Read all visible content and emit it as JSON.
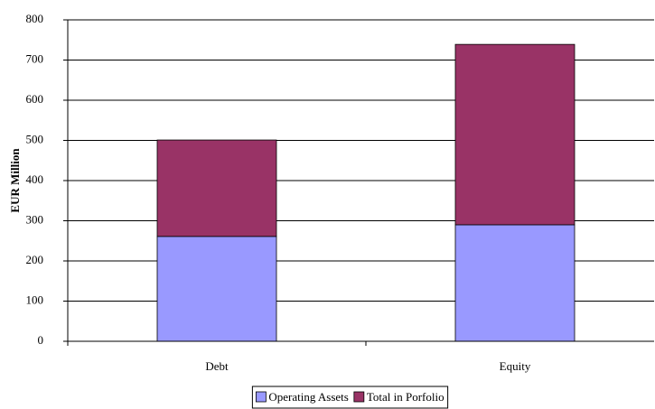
{
  "chart_data": {
    "type": "stacked-bar",
    "y_label": "EUR Million",
    "categories": [
      "Debt",
      "Equity"
    ],
    "series": [
      {
        "name": "Operating Assets",
        "color": "#9999ff",
        "values": [
          261,
          290
        ]
      },
      {
        "name": "Total in Porfolio",
        "color": "#993366",
        "values": [
          240,
          449
        ]
      }
    ],
    "ylim": [
      0,
      800
    ],
    "yticks": [
      0,
      100,
      200,
      300,
      400,
      500,
      600,
      700,
      800
    ],
    "grid": true,
    "legend": "bottom"
  }
}
